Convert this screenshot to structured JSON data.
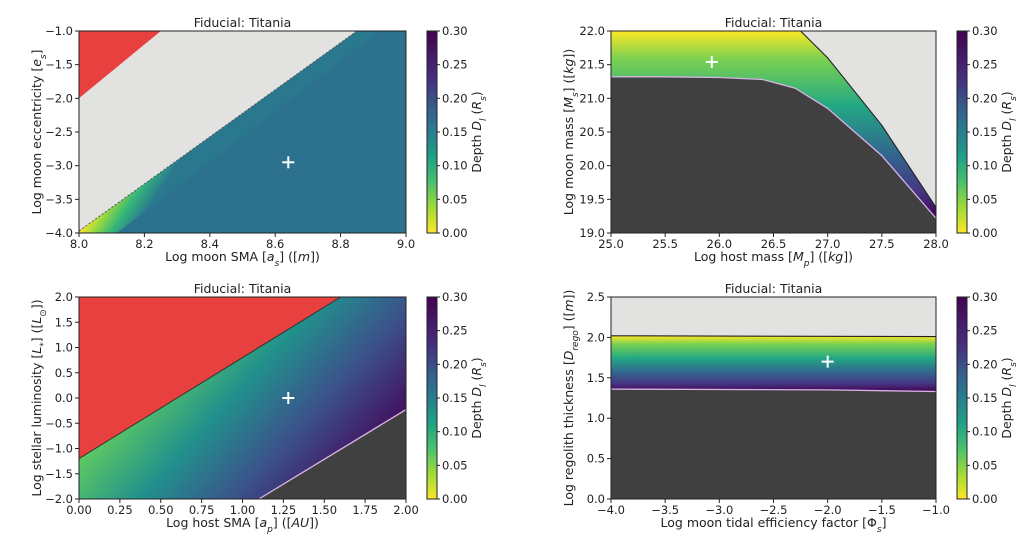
{
  "chart_data": [
    {
      "type": "heatmap",
      "title": "Fiducial: Titania",
      "xlabel": "Log moon SMA [a_s] ([m])",
      "ylabel": "Log moon eccentricity [e_s]",
      "colorbar_label": "Depth D_l (R_s)",
      "xlim": [
        8.0,
        9.0
      ],
      "ylim": [
        -4.0,
        -1.0
      ],
      "xticks": [
        "8.0",
        "8.2",
        "8.4",
        "8.6",
        "8.8",
        "9.0"
      ],
      "yticks": [
        "-1.0",
        "-1.5",
        "-2.0",
        "-2.5",
        "-3.0",
        "-3.5",
        "-4.0"
      ],
      "colorbar_range": [
        0.0,
        0.3
      ],
      "colorbar_ticks": [
        "0.30",
        "0.25",
        "0.20",
        "0.15",
        "0.10",
        "0.05",
        "0.00"
      ],
      "fiducial_marker": {
        "x": 8.64,
        "y": -2.95
      },
      "uniform_depth": 0.2,
      "boundary_upper": [
        [
          8.0,
          -3.97
        ],
        [
          8.85,
          -1.0
        ]
      ],
      "boundary_lower_red": [
        [
          8.0,
          -2.0
        ],
        [
          8.25,
          -1.0
        ]
      ]
    },
    {
      "type": "heatmap",
      "title": "Fiducial: Titania",
      "xlabel": "Log host mass [M_p] ([kg])",
      "ylabel": "Log moon mass [M_s] ([kg])",
      "colorbar_label": "Depth D_l (R_s)",
      "xlim": [
        25.0,
        28.0
      ],
      "ylim": [
        19.0,
        22.0
      ],
      "xticks": [
        "25.0",
        "25.5",
        "26.0",
        "26.5",
        "27.0",
        "27.5",
        "28.0"
      ],
      "yticks": [
        "22.0",
        "21.5",
        "21.0",
        "20.5",
        "20.0",
        "19.5",
        "19.0"
      ],
      "colorbar_range": [
        0.0,
        0.3
      ],
      "colorbar_ticks": [
        "0.30",
        "0.25",
        "0.20",
        "0.15",
        "0.10",
        "0.05",
        "0.00"
      ],
      "fiducial_marker": {
        "x": 25.93,
        "y": 21.54
      },
      "band_lower": [
        [
          25.0,
          21.32
        ],
        [
          25.5,
          21.32
        ],
        [
          26.0,
          21.31
        ],
        [
          26.4,
          21.28
        ],
        [
          26.7,
          21.15
        ],
        [
          27.0,
          20.85
        ],
        [
          27.5,
          20.15
        ],
        [
          28.0,
          19.22
        ]
      ],
      "band_upper": [
        [
          25.0,
          22.0
        ],
        [
          26.75,
          22.0
        ],
        [
          27.0,
          21.6
        ],
        [
          27.5,
          20.6
        ],
        [
          28.0,
          19.38
        ]
      ]
    },
    {
      "type": "heatmap",
      "title": "Fiducial: Titania",
      "xlabel": "Log host SMA [a_p] ([AU])",
      "ylabel": "Log stellar luminosity [L_*] ([L_⊙])",
      "colorbar_label": "Depth D_l (R_s)",
      "xlim": [
        0.0,
        2.0
      ],
      "ylim": [
        -2.0,
        2.0
      ],
      "xticks": [
        "0.00",
        "0.25",
        "0.50",
        "0.75",
        "1.00",
        "1.25",
        "1.50",
        "1.75",
        "2.00"
      ],
      "yticks": [
        "2.0",
        "1.5",
        "1.0",
        "0.5",
        "0.0",
        "-0.5",
        "-1.0",
        "-1.5",
        "-2.0"
      ],
      "colorbar_range": [
        0.0,
        0.3
      ],
      "colorbar_ticks": [
        "0.30",
        "0.25",
        "0.20",
        "0.15",
        "0.10",
        "0.05",
        "0.00"
      ],
      "fiducial_marker": {
        "x": 1.28,
        "y": 0.0
      },
      "boundary_red": [
        [
          0.0,
          -1.2
        ],
        [
          1.6,
          2.0
        ]
      ],
      "boundary_dark": [
        [
          1.1,
          -2.0
        ],
        [
          2.0,
          -0.23
        ]
      ]
    },
    {
      "type": "heatmap",
      "title": "Fiducial: Titania",
      "xlabel": "Log moon tidal efficiency factor [Φ_s]",
      "ylabel": "Log regolith thickness [D_rego] ([m])",
      "colorbar_label": "Depth D_l (R_s)",
      "xlim": [
        -4.0,
        -1.0
      ],
      "ylim": [
        0.0,
        2.5
      ],
      "xticks": [
        "-4.0",
        "-3.5",
        "-3.0",
        "-2.5",
        "-2.0",
        "-1.5",
        "-1.0"
      ],
      "yticks": [
        "2.5",
        "2.0",
        "1.5",
        "1.0",
        "0.5",
        "0.0"
      ],
      "colorbar_range": [
        0.0,
        0.3
      ],
      "colorbar_ticks": [
        "0.30",
        "0.25",
        "0.20",
        "0.15",
        "0.10",
        "0.05",
        "0.00"
      ],
      "fiducial_marker": {
        "x": -2.0,
        "y": 1.7
      },
      "band_upper": [
        [
          -4.0,
          2.02
        ],
        [
          -1.0,
          2.01
        ]
      ],
      "band_lower": [
        [
          -4.0,
          1.36
        ],
        [
          -2.0,
          1.35
        ],
        [
          -1.0,
          1.33
        ]
      ]
    }
  ]
}
